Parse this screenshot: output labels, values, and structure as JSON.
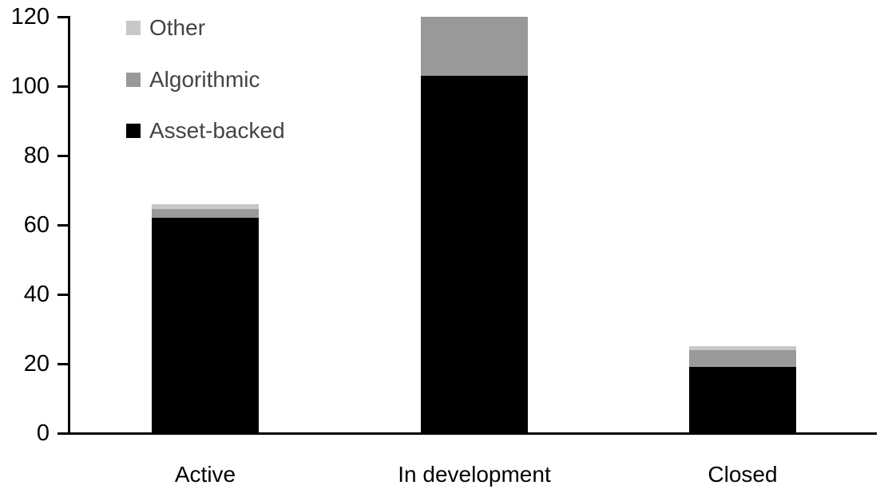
{
  "chart_data": {
    "type": "bar",
    "stacked": true,
    "title": "",
    "xlabel": "",
    "ylabel": "",
    "categories": [
      "Active",
      "In development",
      "Closed"
    ],
    "series": [
      {
        "name": "Asset-backed",
        "color": "#000000",
        "values": [
          62,
          103,
          19
        ]
      },
      {
        "name": "Algorithmic",
        "color": "#999999",
        "values": [
          2.5,
          17,
          5
        ]
      },
      {
        "name": "Other",
        "color": "#c8c8c8",
        "values": [
          1.5,
          0,
          1
        ]
      }
    ],
    "stack_totals": [
      66,
      120,
      25
    ],
    "ylim": [
      0,
      120
    ],
    "yticks": [
      0,
      20,
      40,
      60,
      80,
      100,
      120
    ],
    "grid": false,
    "legend_position": "top-left",
    "legend_order": [
      "Other",
      "Algorithmic",
      "Asset-backed"
    ],
    "legend_text_color": "#444444",
    "axis_color": "#000000"
  }
}
